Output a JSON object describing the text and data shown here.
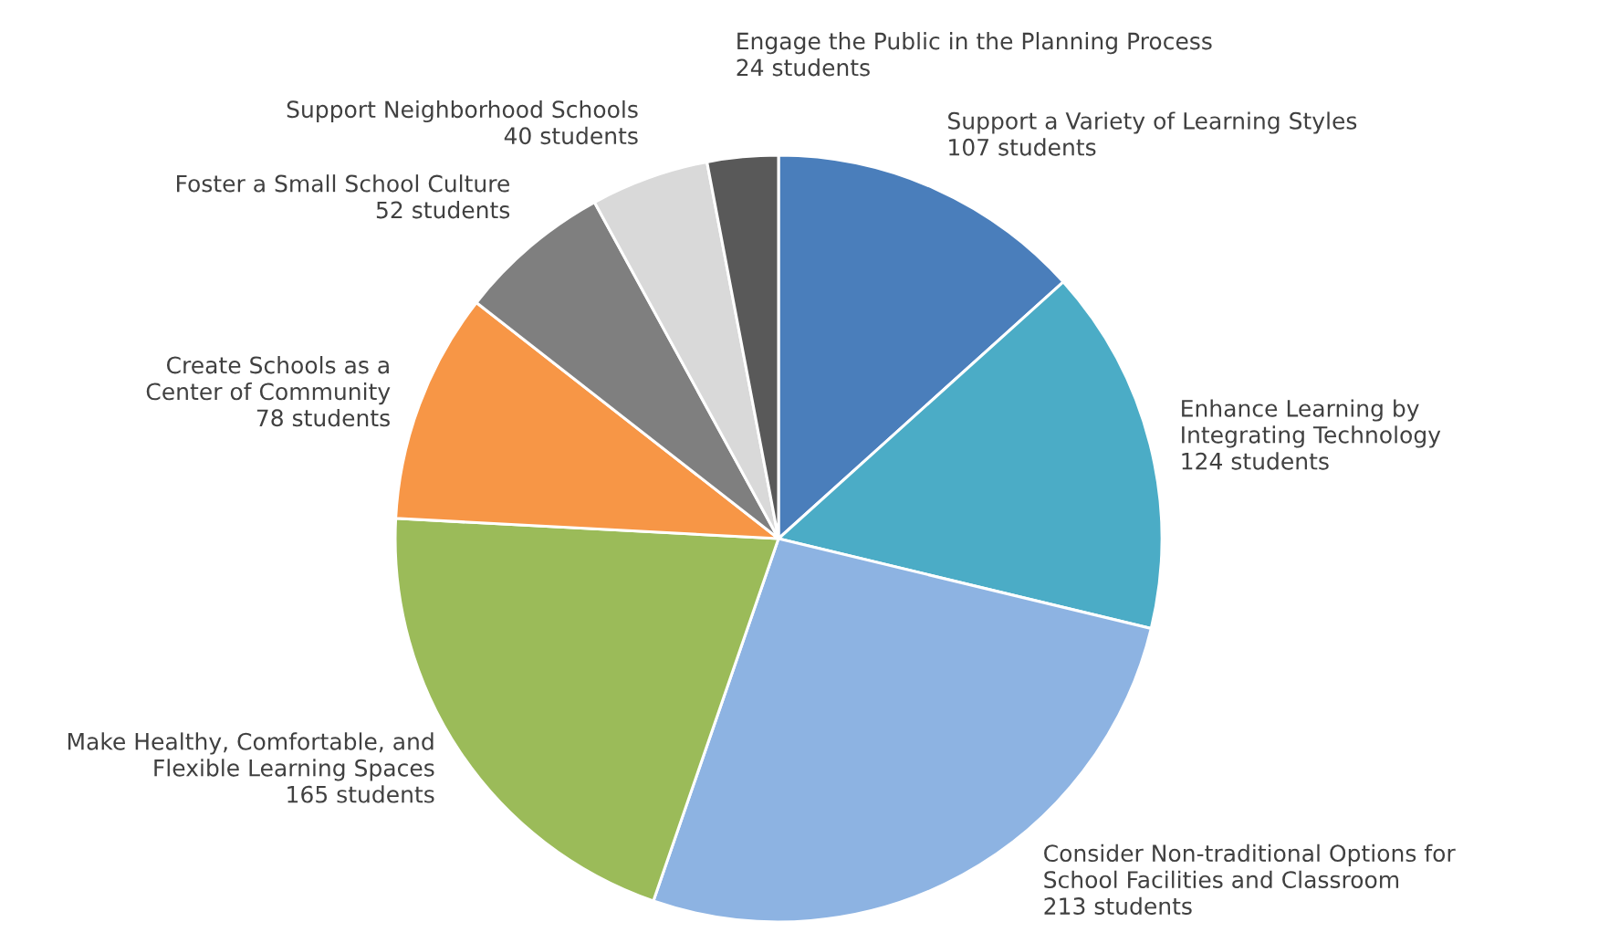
{
  "chart_data": {
    "type": "pie",
    "categories": [
      "Support a Variety of Learning Styles",
      "Enhance Learning by\nIntegrating Technology",
      "Consider Non-traditional Options for\nSchool Facilities and Classroom",
      "Make Healthy, Comfortable, and\nFlexible Learning Spaces",
      "Create Schools as a\nCenter of Community",
      "Foster a Small School Culture",
      "Support Neighborhood Schools",
      "Engage the Public in the Planning Process"
    ],
    "values": [
      107,
      124,
      213,
      165,
      78,
      52,
      40,
      24
    ],
    "value_labels": [
      "107 students",
      "124 students",
      "213 students",
      "165 students",
      "78 students",
      "52 students",
      "40 students",
      "24 students"
    ],
    "colors": [
      "#4a7ebb",
      "#4bacc6",
      "#8db3e2",
      "#9bbb59",
      "#f79646",
      "#7f7f7f",
      "#d9d9d9",
      "#595959"
    ],
    "legend": false
  }
}
